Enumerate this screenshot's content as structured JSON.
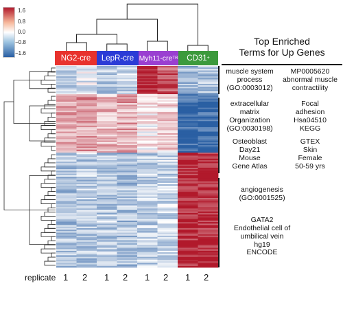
{
  "chart_data": {
    "type": "heatmap",
    "colorbar": {
      "ticks": [
        "1.6",
        "0.8",
        "0.0",
        "−0.8",
        "−1.6"
      ],
      "range": [
        -1.6,
        1.6
      ],
      "colors": [
        "#2a5fa3",
        "#ffffff",
        "#b1192b"
      ]
    },
    "groups": [
      {
        "label": "NG2-cre",
        "color": "#e8322d"
      },
      {
        "label": "LepR-cre",
        "color": "#2b3bd6"
      },
      {
        "label": "Myh11-cre",
        "superscript": "TR",
        "color": "#9a3fd1"
      },
      {
        "label": "CD31",
        "superscript": "+",
        "color": "#3c9a3c"
      }
    ],
    "column_axis_label": "replicate",
    "replicates": [
      "1",
      "2",
      "1",
      "2",
      "1",
      "2",
      "1",
      "2"
    ],
    "clusters": [
      {
        "name": "cluster-1",
        "row_fraction": 0.14,
        "mean_values": [
          -0.4,
          -0.2,
          -0.5,
          -0.4,
          1.6,
          1.2,
          -0.7,
          -0.6
        ]
      },
      {
        "name": "cluster-2",
        "row_fraction": 0.29,
        "mean_values": [
          0.7,
          0.7,
          0.5,
          0.6,
          0.1,
          0.3,
          -1.5,
          -1.5
        ]
      },
      {
        "name": "cluster-3",
        "row_fraction": 0.57,
        "mean_values": [
          -0.6,
          -0.5,
          -0.5,
          -0.6,
          -0.5,
          -0.4,
          1.5,
          1.5
        ]
      }
    ],
    "panel_title": [
      "Top Enriched",
      "Terms for Up Genes"
    ],
    "enriched_terms": [
      {
        "cluster": "cluster-1",
        "left": "muscle system\nprocess\n(GO:0003012)",
        "right": "MP0005620\nabnormal muscle\ncontractility"
      },
      {
        "cluster": "cluster-2",
        "left": "extracellular\nmatrix\nOrganization\n(GO:0030198)",
        "right": "Focal\nadhesion\nHsa04510\nKEGG",
        "left2": "Osteoblast\nDay21\nMouse\nGene Atlas",
        "right2": "GTEX\nSkin\nFemale\n50-59 yrs"
      },
      {
        "cluster": "cluster-3",
        "left": "angiogenesis\n(GO:0001525)",
        "left2": "GATA2\nEndothelial cell of\numbilical vein\nhg19\nENCODE"
      }
    ]
  }
}
